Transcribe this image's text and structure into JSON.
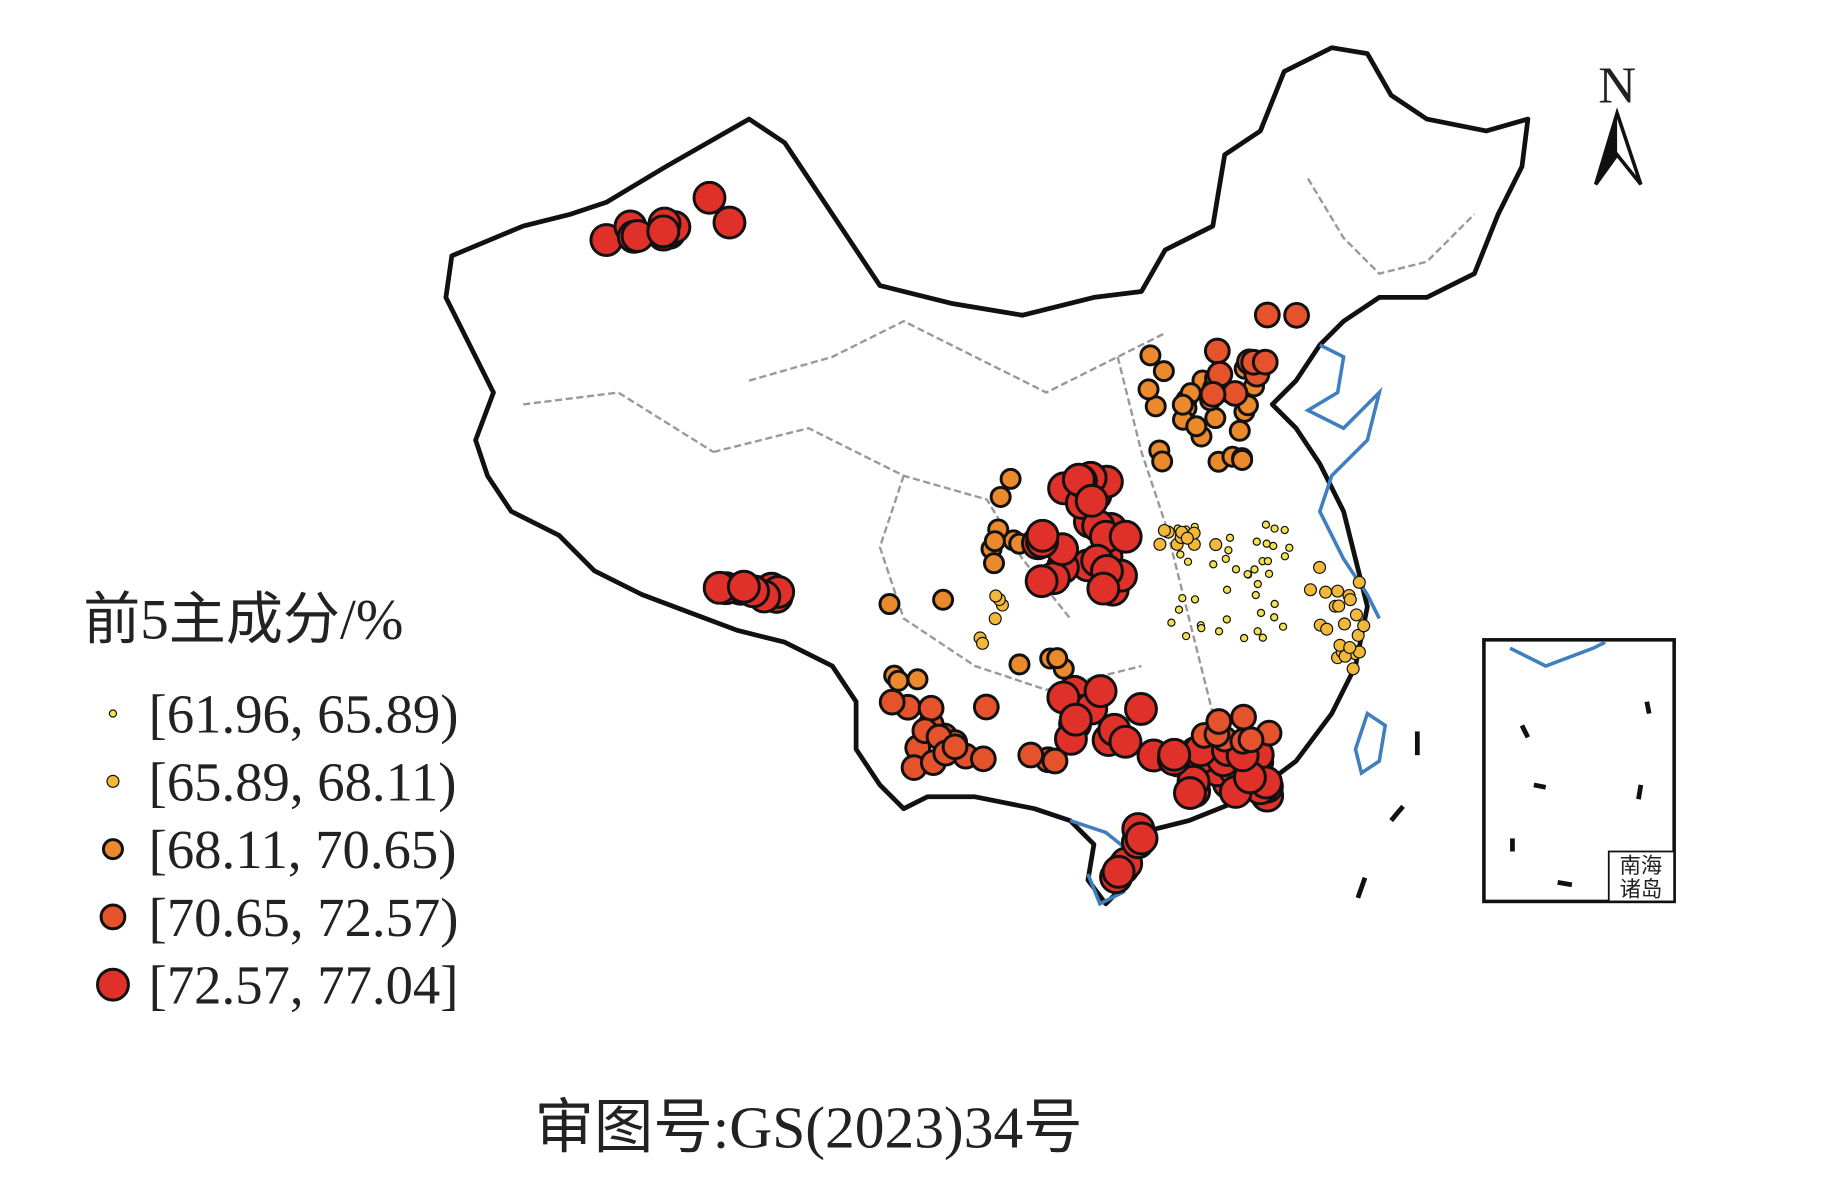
{
  "legend": {
    "title": "前5主成分/%",
    "classes": [
      {
        "label": "[61.96, 65.89)",
        "color": "#f3e24c"
      },
      {
        "label": "[65.89, 68.11)",
        "color": "#f1b83a"
      },
      {
        "label": "[68.11, 70.65)",
        "color": "#eb8a2d"
      },
      {
        "label": "[70.65, 72.57)",
        "color": "#e4532b"
      },
      {
        "label": "[72.57, 77.04]",
        "color": "#e0302a"
      }
    ]
  },
  "north": "N",
  "inset_label": [
    "南海",
    "诸岛"
  ],
  "approval": "审图号:GS(2023)34号"
}
